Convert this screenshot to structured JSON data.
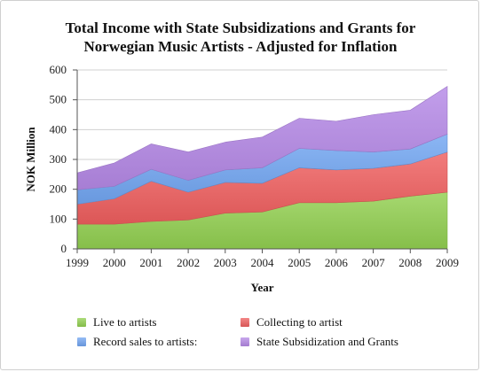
{
  "chart_data": {
    "type": "area",
    "stacked": true,
    "title_lines": [
      "Total Income with State Subsidizations and Grants for",
      "Norwegian Music Artists - Adjusted for Inflation"
    ],
    "xlabel": "Year",
    "ylabel": "NOK Million",
    "categories": [
      "1999",
      "2000",
      "2001",
      "2002",
      "2003",
      "2004",
      "2005",
      "2006",
      "2007",
      "2008",
      "2009"
    ],
    "ylim": [
      0,
      600
    ],
    "yticks": [
      0,
      100,
      200,
      300,
      400,
      500,
      600
    ],
    "grid": true,
    "legend_position": "bottom",
    "series": [
      {
        "name": "Live to artists",
        "color": "#92d050",
        "values": [
          83,
          83,
          92,
          97,
          120,
          124,
          155,
          155,
          160,
          177,
          190
        ]
      },
      {
        "name": "Collecting to artist",
        "color": "#ef5f5f",
        "values": [
          67,
          85,
          135,
          93,
          103,
          96,
          117,
          110,
          110,
          108,
          135
        ]
      },
      {
        "name": "Record sales to artists:",
        "color": "#72a6f2",
        "values": [
          48,
          42,
          40,
          40,
          42,
          52,
          65,
          65,
          55,
          50,
          60
        ]
      },
      {
        "name": "State Subsidization and Grants",
        "color": "#b589e6",
        "values": [
          57,
          78,
          85,
          95,
          93,
          103,
          101,
          98,
          125,
          130,
          160
        ]
      }
    ]
  }
}
